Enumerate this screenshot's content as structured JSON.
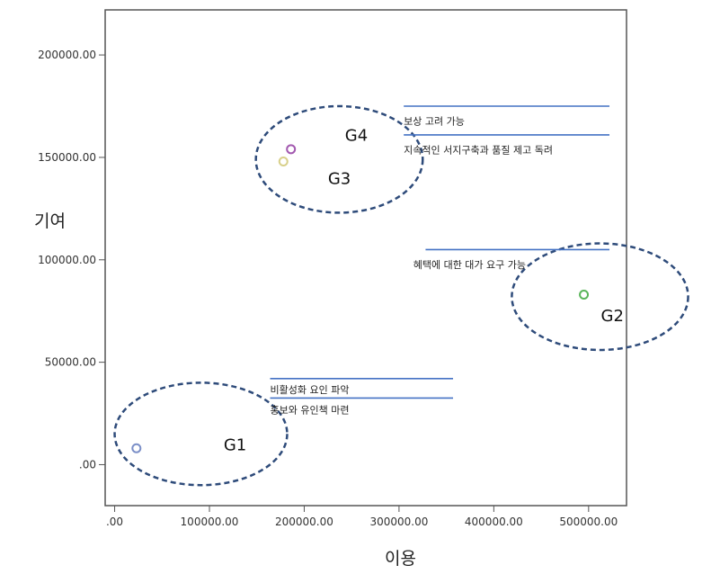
{
  "chart_data": {
    "type": "scatter",
    "xlabel": "이용",
    "ylabel": "기여",
    "xlim": [
      -10000,
      540000
    ],
    "ylim": [
      -20000,
      222000
    ],
    "x_ticks": [
      {
        "value": 0,
        "label": ".00"
      },
      {
        "value": 100000,
        "label": "100000.00"
      },
      {
        "value": 200000,
        "label": "200000.00"
      },
      {
        "value": 300000,
        "label": "300000.00"
      },
      {
        "value": 400000,
        "label": "400000.00"
      },
      {
        "value": 500000,
        "label": "500000.00"
      }
    ],
    "y_ticks": [
      {
        "value": 0,
        "label": ".00"
      },
      {
        "value": 50000,
        "label": "50000.00"
      },
      {
        "value": 100000,
        "label": "100000.00"
      },
      {
        "value": 150000,
        "label": "150000.00"
      },
      {
        "value": 200000,
        "label": "200000.00"
      }
    ],
    "points": [
      {
        "x": 23000,
        "y": 8000,
        "color": "#7b8fc8"
      },
      {
        "x": 495000,
        "y": 83000,
        "color": "#5ab55a"
      },
      {
        "x": 178000,
        "y": 148000,
        "color": "#d8d08a"
      },
      {
        "x": 186000,
        "y": 154000,
        "color": "#a35ab0"
      }
    ],
    "groups": [
      {
        "label": "G1",
        "cx": 91000,
        "cy": 15000,
        "rx": 91000,
        "ry": 25000,
        "label_x": 115000,
        "label_y": 7000
      },
      {
        "label": "G2",
        "cx": 512000,
        "cy": 82000,
        "rx": 93000,
        "ry": 26000,
        "label_x": 513000,
        "label_y": 70000
      },
      {
        "label": "G3",
        "cx": 237000,
        "cy": 149000,
        "rx": 88000,
        "ry": 26000,
        "label_x": 225000,
        "label_y": 137000
      },
      {
        "label": "G4",
        "cx": 0,
        "cy": 0,
        "rx": 0,
        "ry": 0,
        "label_x": 243000,
        "label_y": 158000
      }
    ],
    "annotations": [
      {
        "text": "보상 고려 가능",
        "line_x1": 305000,
        "line_x2": 522000,
        "line_y": 175000,
        "text_x": 305000,
        "text_y": 166000
      },
      {
        "text": "지속적인 서지구축과 품질 제고 독려",
        "line_x1": 305000,
        "line_x2": 522000,
        "line_y": 161000,
        "text_x": 305000,
        "text_y": 152000
      },
      {
        "text": "혜택에 대한 대가 요구 가능",
        "line_x1": 328000,
        "line_x2": 522000,
        "line_y": 105000,
        "text_x": 315000,
        "text_y": 96000
      },
      {
        "text": "비활성화 요인 파악",
        "line_x1": 164000,
        "line_x2": 357000,
        "line_y": 42000,
        "text_x": 164000,
        "text_y": 35000
      },
      {
        "text": "홍보와 유인책 마련",
        "line_x1": 164000,
        "line_x2": 357000,
        "line_y": 32500,
        "text_x": 164000,
        "text_y": 25000
      }
    ],
    "grid": false
  }
}
